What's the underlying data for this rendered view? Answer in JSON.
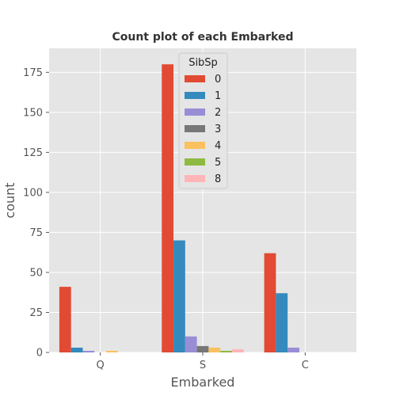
{
  "chart_data": {
    "type": "bar",
    "title": "Count plot of each Embarked",
    "xlabel": "Embarked",
    "ylabel": "count",
    "categories": [
      "Q",
      "S",
      "C"
    ],
    "ylim": [
      0,
      190
    ],
    "yticks": [
      0,
      25,
      50,
      75,
      100,
      125,
      150,
      175
    ],
    "grid": true,
    "legend": {
      "title": "SibSp",
      "placement": "top-center"
    },
    "series": [
      {
        "name": "0",
        "color": "#E24A33",
        "values": [
          41,
          180,
          62
        ]
      },
      {
        "name": "1",
        "color": "#348ABD",
        "values": [
          3,
          70,
          37
        ]
      },
      {
        "name": "2",
        "color": "#988ED5",
        "values": [
          1,
          10,
          3
        ]
      },
      {
        "name": "3",
        "color": "#777777",
        "values": [
          0,
          4,
          0
        ]
      },
      {
        "name": "4",
        "color": "#FBC15E",
        "values": [
          1,
          3,
          0
        ]
      },
      {
        "name": "5",
        "color": "#8EBA42",
        "values": [
          0,
          1,
          0
        ]
      },
      {
        "name": "8",
        "color": "#FFB5B8",
        "values": [
          0,
          2,
          0
        ]
      }
    ]
  }
}
